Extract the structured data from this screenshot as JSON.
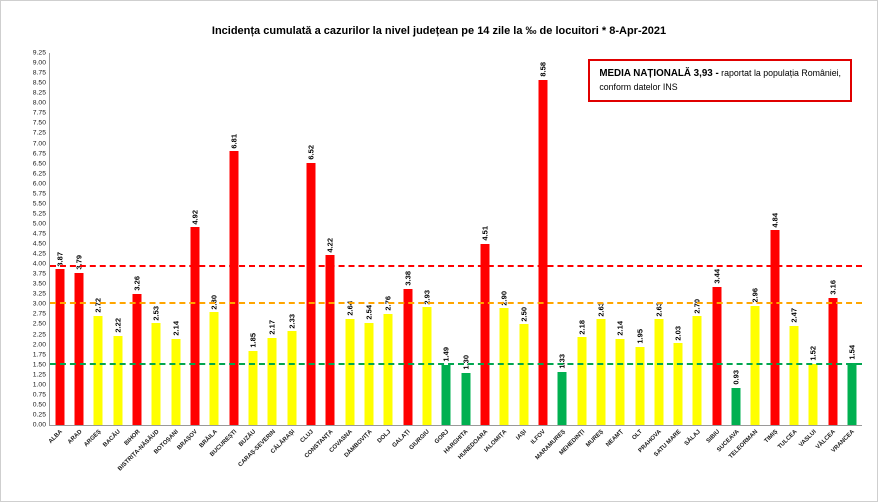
{
  "title": "Incidența cumulată a cazurilor la nivel județean pe 14 zile la ‰ de locuitori *  8-Apr-2021",
  "legend": {
    "bold": "MEDIA NAȚIONALĂ  3,93 -",
    "line1": " raportat la populația României,",
    "line2": "conform datelor INS"
  },
  "colors": {
    "red": "#ff0000",
    "yellow": "#ffff00",
    "green": "#00b050",
    "threshold_red": "#ff0000",
    "threshold_orange": "#ffa500",
    "threshold_green": "#00a650",
    "legend_border": "#e00000"
  },
  "chart_data": {
    "type": "bar",
    "title": "Incidența cumulată a cazurilor la nivel județean pe 14 zile la ‰ de locuitori *  8-Apr-2021",
    "xlabel": "",
    "ylabel": "",
    "ylim": [
      0,
      9.25
    ],
    "ytick_step": 0.25,
    "grid": false,
    "categories": [
      "ALBA",
      "ARAD",
      "ARGEȘ",
      "BACĂU",
      "BIHOR",
      "BISTRIȚA-NĂSĂUD",
      "BOTOȘANI",
      "BRAȘOV",
      "BRĂILA",
      "BUCUREȘTI",
      "BUZĂU",
      "CARAȘ-SEVERIN",
      "CĂLĂRAȘI",
      "CLUJ",
      "CONSTANȚA",
      "COVASNA",
      "DÂMBOVIȚA",
      "DOLJ",
      "GALAȚI",
      "GIURGIU",
      "GORJ",
      "HARGHITA",
      "HUNEDOARA",
      "IALOMIȚA",
      "IAȘI",
      "ILFOV",
      "MARAMUREȘ",
      "MEHEDINȚI",
      "MUREȘ",
      "NEAMȚ",
      "OLT",
      "PRAHOVA",
      "SATU MARE",
      "SĂLAJ",
      "SIBIU",
      "SUCEAVA",
      "TELEORMAN",
      "TIMIȘ",
      "TULCEA",
      "VASLUI",
      "VÂLCEA",
      "VRANCEA"
    ],
    "values": [
      3.87,
      3.79,
      2.72,
      2.22,
      3.26,
      2.53,
      2.14,
      4.92,
      2.8,
      6.81,
      1.85,
      2.17,
      2.33,
      6.52,
      4.22,
      2.64,
      2.54,
      2.76,
      3.38,
      2.93,
      1.49,
      1.3,
      4.51,
      2.9,
      2.5,
      8.58,
      1.33,
      2.18,
      2.63,
      2.14,
      1.95,
      2.63,
      2.03,
      2.7,
      3.44,
      0.93,
      2.96,
      4.84,
      2.47,
      1.52,
      3.16,
      1.54
    ],
    "bar_colors": [
      "red",
      "red",
      "yellow",
      "yellow",
      "red",
      "yellow",
      "yellow",
      "red",
      "yellow",
      "red",
      "yellow",
      "yellow",
      "yellow",
      "red",
      "red",
      "yellow",
      "yellow",
      "yellow",
      "red",
      "yellow",
      "green",
      "green",
      "red",
      "yellow",
      "yellow",
      "red",
      "green",
      "yellow",
      "yellow",
      "yellow",
      "yellow",
      "yellow",
      "yellow",
      "yellow",
      "red",
      "green",
      "yellow",
      "red",
      "yellow",
      "yellow",
      "red",
      "green"
    ],
    "thresholds": [
      {
        "name": "national-average",
        "value": 3.93,
        "color_key": "threshold_red"
      },
      {
        "name": "orange-limit",
        "value": 3.0,
        "color_key": "threshold_orange"
      },
      {
        "name": "green-limit",
        "value": 1.5,
        "color_key": "threshold_green"
      }
    ]
  }
}
